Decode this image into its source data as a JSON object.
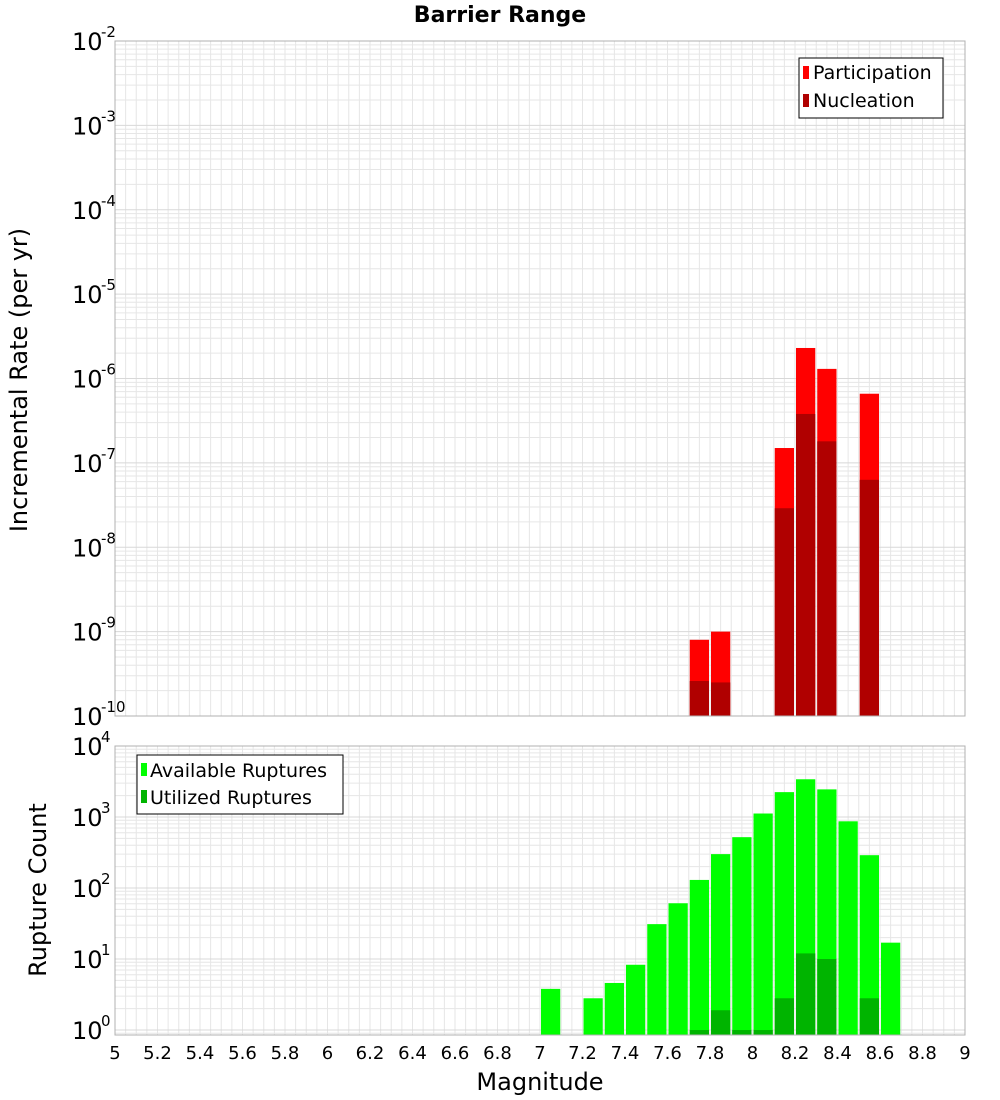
{
  "colors": {
    "participation": "#ff0000",
    "nucleation": "#b00000",
    "available": "#00ff00",
    "utilized": "#00b400",
    "grid": "#e6e6e6",
    "frame": "#b0b0b0"
  },
  "chart_data": {
    "type": "bar",
    "title": "Barrier Range",
    "xlabel": "Magnitude",
    "xlim": [
      5,
      9
    ],
    "xticks": [
      "5",
      "5.2",
      "5.4",
      "5.6",
      "5.8",
      "6",
      "6.2",
      "6.4",
      "6.6",
      "6.8",
      "7",
      "7.2",
      "7.4",
      "7.6",
      "7.8",
      "8",
      "8.2",
      "8.4",
      "8.6",
      "8.8",
      "9"
    ],
    "bin_width": 0.1,
    "top_panel": {
      "ylabel": "Incremental Rate (per yr)",
      "yscale": "log",
      "ylim_exponents": [
        -10,
        -2
      ],
      "ytick_exponents": [
        "-2",
        "-3",
        "-4",
        "-5",
        "-6",
        "-7",
        "-8",
        "-9",
        "-10"
      ],
      "legend": [
        "Participation",
        "Nucleation"
      ],
      "legend_position": "top-right",
      "series": [
        {
          "name": "Participation",
          "x": [
            7.75,
            7.85,
            8.15,
            8.25,
            8.35,
            8.55
          ],
          "values": [
            8e-10,
            1e-09,
            1.5e-07,
            2.3e-06,
            1.3e-06,
            6.6e-07
          ]
        },
        {
          "name": "Nucleation",
          "x": [
            7.75,
            7.85,
            8.15,
            8.25,
            8.35,
            8.55
          ],
          "values": [
            2.6e-10,
            2.5e-10,
            2.9e-08,
            3.8e-07,
            1.8e-07,
            6.3e-08
          ]
        }
      ]
    },
    "bottom_panel": {
      "ylabel": "Rupture Count",
      "yscale": "log",
      "ylim_exponents": [
        -0.07,
        4
      ],
      "ytick_exponents": [
        "4",
        "3",
        "2",
        "1",
        "0"
      ],
      "legend": [
        "Available Ruptures",
        "Utilized Ruptures"
      ],
      "legend_position": "top-left",
      "series": [
        {
          "name": "Available Ruptures",
          "x": [
            7.05,
            7.25,
            7.35,
            7.45,
            7.55,
            7.65,
            7.75,
            7.85,
            7.95,
            8.05,
            8.15,
            8.25,
            8.35,
            8.45,
            8.55,
            8.65
          ],
          "values": [
            3.8,
            2.8,
            4.6,
            8.3,
            31,
            61,
            130,
            300,
            520,
            1120,
            2240,
            3400,
            2450,
            870,
            290,
            17
          ]
        },
        {
          "name": "Utilized Ruptures",
          "x": [
            7.75,
            7.85,
            7.95,
            8.05,
            8.15,
            8.25,
            8.35,
            8.55
          ],
          "values": [
            1,
            1.9,
            1,
            1,
            2.8,
            12,
            10,
            2.8
          ]
        }
      ]
    }
  }
}
